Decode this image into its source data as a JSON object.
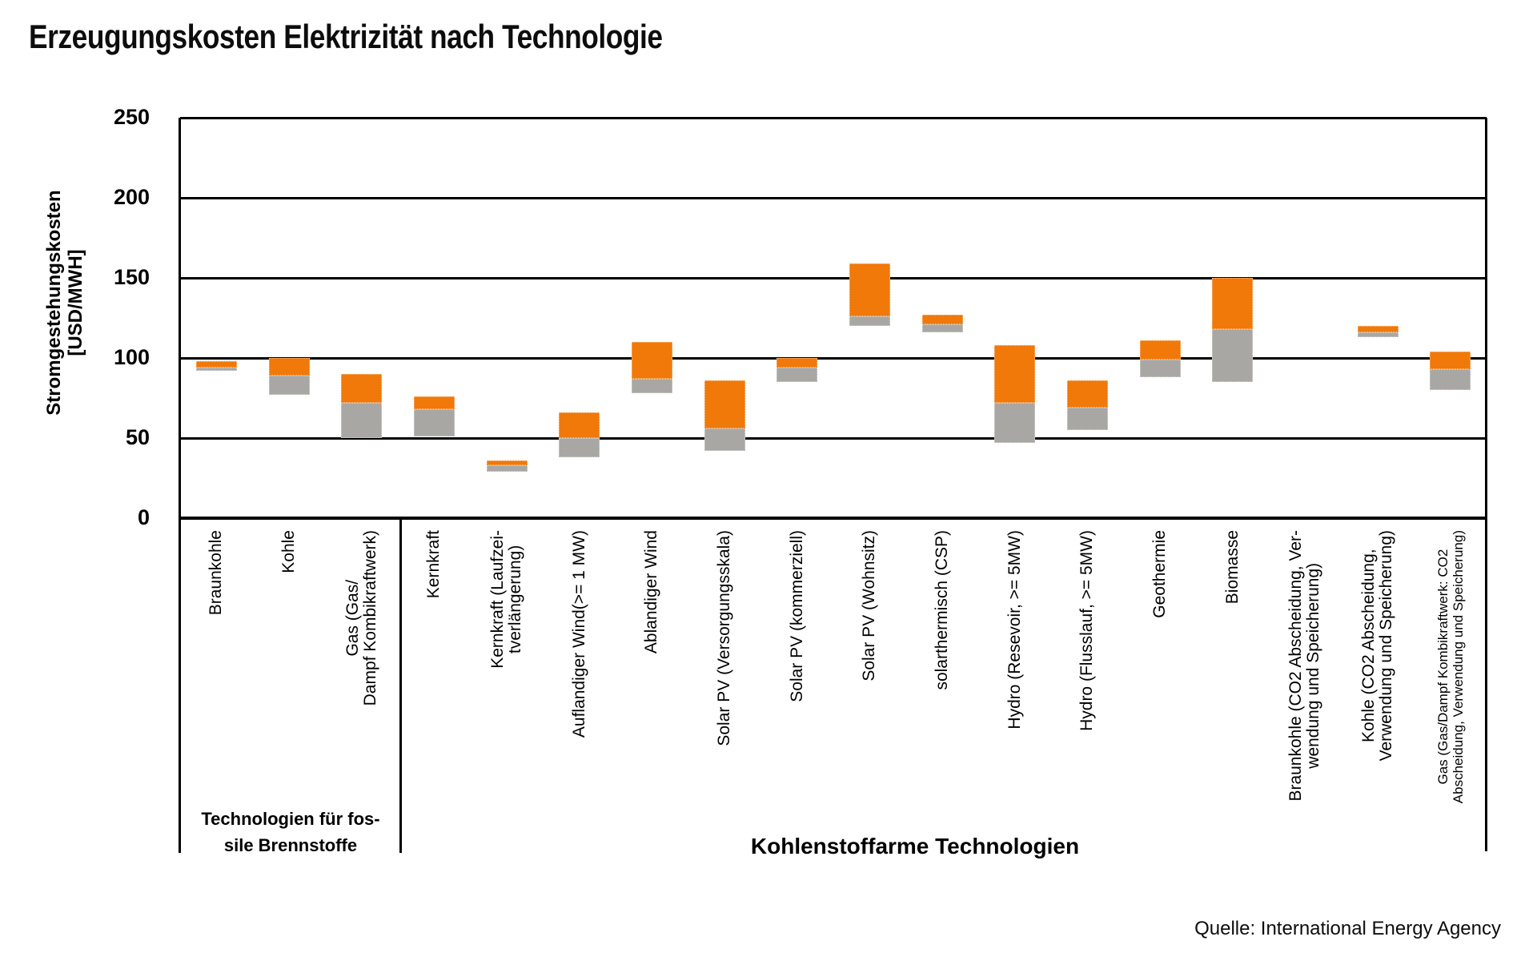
{
  "title": "Erzeugungskosten Elektrizität nach Technologie",
  "source": "Quelle: International Energy Agency",
  "y_axis": {
    "title": "Stromgestehungskosten\n[USD/MWH]"
  },
  "groups": [
    {
      "label": "Technologien für fos-\nsile Brennstoffe"
    },
    {
      "label": "Kohlenstoffarme Technologien"
    }
  ],
  "chart_data": {
    "type": "bar",
    "variant": "floating-range-columns",
    "title": "Erzeugungskosten Elektrizität nach Technologie",
    "xlabel": "",
    "ylabel": "Stromgestehungskosten [USD/MWH]",
    "unit": "USD/MWH",
    "ylim": [
      0,
      250
    ],
    "y_ticks": [
      0,
      50,
      100,
      150,
      200,
      250
    ],
    "grid": true,
    "legend": false,
    "colors": {
      "range_low_gray": "#A8A7A4",
      "range_high_orange": "#F0790A"
    },
    "group_membership": {
      "fossil": [
        0,
        1,
        2
      ],
      "low_carbon": [
        3,
        17
      ]
    },
    "columns": [
      {
        "label": "Braunkohle",
        "low": 92,
        "mid": 94,
        "high": 98
      },
      {
        "label": "Kohle",
        "low": 77,
        "mid": 89,
        "high": 100
      },
      {
        "label": "Gas (Gas/\nDampf Kombikraftwerk)",
        "low": 50,
        "mid": 72,
        "high": 90
      },
      {
        "label": "Kernkraft",
        "low": 51,
        "mid": 68,
        "high": 76
      },
      {
        "label": "Kernkraft (Laufzei-\ntverlängerung)",
        "low": 29,
        "mid": 33,
        "high": 36
      },
      {
        "label": "Auflandiger Wind(>= 1 MW)",
        "low": 38,
        "mid": 50,
        "high": 66
      },
      {
        "label": "Ablandiger Wind",
        "low": 78,
        "mid": 87,
        "high": 110
      },
      {
        "label": "Solar PV (Versorgungsskala)",
        "low": 42,
        "mid": 56,
        "high": 86
      },
      {
        "label": "Solar PV (kommerziell)",
        "low": 85,
        "mid": 94,
        "high": 100
      },
      {
        "label": "Solar PV (Wohnsitz)",
        "low": 120,
        "mid": 126,
        "high": 159
      },
      {
        "label": "solarthermisch (CSP)",
        "low": 116,
        "mid": 121,
        "high": 127
      },
      {
        "label": "Hydro (Resevoir, >= 5MW)",
        "low": 47,
        "mid": 72,
        "high": 108
      },
      {
        "label": "Hydro (Flusslauf, >= 5MW)",
        "low": 55,
        "mid": 69,
        "high": 86
      },
      {
        "label": "Geothermie",
        "low": 88,
        "mid": 99,
        "high": 111
      },
      {
        "label": "Biomasse",
        "low": 85,
        "mid": 118,
        "high": 150
      },
      {
        "label": "Braunkohle (CO2 Abscheidung, Ver-\nwendung und Speicherung)",
        "low": null,
        "mid": null,
        "high": null
      },
      {
        "label": "Kohle (CO2 Abscheidung,\nVerwendung und Speicherung)",
        "low": 113,
        "mid": 116,
        "high": 120
      },
      {
        "label": "Gas (Gas/Dampf Kombikraftwerk: CO2\nAbscheidung, Verwendung und Speicherung)",
        "low": 80,
        "mid": 93,
        "high": 104,
        "small_font": true
      }
    ]
  }
}
